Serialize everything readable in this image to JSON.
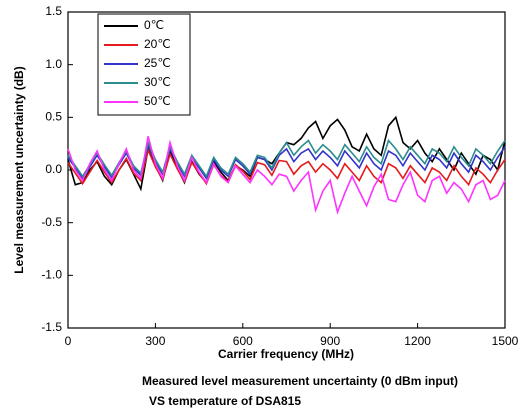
{
  "chart_data": {
    "type": "line",
    "xlabel": "Carrier frequency (MHz)",
    "ylabel": "Level measurement uncertainty (dB)",
    "caption": [
      "Measured level measurement uncertainty (0 dBm input)",
      "VS temperature of DSA815"
    ],
    "legend": "upper left",
    "xlim": [
      0,
      1500
    ],
    "xticks": [
      0,
      300,
      600,
      900,
      1200,
      1500
    ],
    "ylim": [
      -1.5,
      1.5
    ],
    "yticks": [
      -1.5,
      {
        "value": -1,
        "label": "-1.0"
      },
      -0.5,
      {
        "value": 0,
        "label": "0.0"
      },
      0.5,
      {
        "value": 1,
        "label": "1.0"
      },
      1.5
    ],
    "x": [
      0,
      25,
      50,
      75,
      100,
      125,
      150,
      175,
      200,
      225,
      250,
      275,
      300,
      325,
      350,
      375,
      400,
      425,
      450,
      475,
      500,
      525,
      550,
      575,
      600,
      625,
      650,
      675,
      700,
      725,
      750,
      775,
      800,
      825,
      850,
      875,
      900,
      925,
      950,
      975,
      1000,
      1025,
      1050,
      1075,
      1100,
      1125,
      1150,
      1175,
      1200,
      1225,
      1250,
      1275,
      1300,
      1325,
      1350,
      1375,
      1400,
      1425,
      1450,
      1475,
      1500
    ],
    "series": [
      {
        "name": "0℃",
        "color": "#000000",
        "values": [
          0.1,
          -0.14,
          -0.12,
          0.0,
          0.08,
          -0.06,
          -0.14,
          0.0,
          0.1,
          -0.04,
          -0.18,
          0.2,
          0.04,
          -0.1,
          0.18,
          0.02,
          -0.12,
          0.08,
          -0.04,
          -0.12,
          0.08,
          -0.02,
          -0.1,
          0.04,
          0.0,
          -0.06,
          0.12,
          0.1,
          0.06,
          0.16,
          0.26,
          0.24,
          0.3,
          0.4,
          0.46,
          0.3,
          0.42,
          0.48,
          0.38,
          0.22,
          0.18,
          0.34,
          0.2,
          0.14,
          0.42,
          0.5,
          0.26,
          0.2,
          0.28,
          0.16,
          0.08,
          0.2,
          0.1,
          0.0,
          0.16,
          0.06,
          -0.04,
          0.14,
          0.1,
          0.0,
          0.28
        ]
      },
      {
        "name": "20℃",
        "color": "#e41a1c",
        "values": [
          0.07,
          -0.03,
          -0.13,
          -0.02,
          0.09,
          -0.02,
          -0.12,
          0.0,
          0.11,
          -0.03,
          -0.1,
          0.19,
          0.03,
          -0.09,
          0.15,
          0.01,
          -0.11,
          0.07,
          -0.03,
          -0.13,
          0.05,
          -0.05,
          -0.11,
          0.05,
          -0.01,
          -0.09,
          0.07,
          0.05,
          -0.05,
          0.09,
          0.08,
          -0.04,
          0.04,
          0.08,
          -0.02,
          0.06,
          0.0,
          -0.08,
          0.06,
          -0.02,
          -0.1,
          0.04,
          -0.06,
          -0.12,
          0.06,
          0.02,
          -0.08,
          0.04,
          -0.04,
          -0.12,
          0.02,
          -0.02,
          -0.1,
          0.04,
          -0.06,
          -0.14,
          0.02,
          -0.04,
          -0.12,
          0.0,
          0.1
        ]
      },
      {
        "name": "25℃",
        "color": "#3333cc",
        "values": [
          0.12,
          0.02,
          -0.08,
          0.03,
          0.14,
          0.03,
          -0.07,
          0.05,
          0.16,
          0.02,
          -0.05,
          0.24,
          0.08,
          -0.04,
          0.2,
          0.06,
          -0.06,
          0.12,
          0.02,
          -0.08,
          0.1,
          0.0,
          -0.06,
          0.1,
          0.04,
          -0.04,
          0.12,
          0.1,
          0.0,
          0.14,
          0.2,
          0.08,
          0.16,
          0.2,
          0.1,
          0.18,
          0.12,
          0.04,
          0.18,
          0.1,
          0.02,
          0.16,
          0.06,
          0.0,
          0.18,
          0.14,
          0.04,
          0.16,
          0.08,
          0.0,
          0.14,
          0.1,
          0.02,
          0.16,
          0.06,
          -0.02,
          0.14,
          0.08,
          0.0,
          0.12,
          0.22
        ]
      },
      {
        "name": "30℃",
        "color": "#2a8c8c",
        "values": [
          0.14,
          0.04,
          -0.06,
          0.05,
          0.16,
          0.05,
          -0.05,
          0.07,
          0.18,
          0.04,
          -0.03,
          0.26,
          0.1,
          -0.02,
          0.22,
          0.08,
          -0.04,
          0.14,
          0.04,
          -0.06,
          0.12,
          0.02,
          -0.04,
          0.12,
          0.06,
          -0.02,
          0.14,
          0.12,
          0.02,
          0.16,
          0.26,
          0.14,
          0.22,
          0.28,
          0.16,
          0.24,
          0.18,
          0.1,
          0.24,
          0.16,
          0.08,
          0.22,
          0.12,
          0.06,
          0.28,
          0.2,
          0.1,
          0.22,
          0.14,
          0.06,
          0.2,
          0.16,
          0.08,
          0.22,
          0.12,
          0.04,
          0.2,
          0.14,
          0.06,
          0.18,
          0.28
        ]
      },
      {
        "name": "50℃",
        "color": "#ff33ff",
        "values": [
          0.2,
          0.0,
          -0.1,
          0.06,
          0.18,
          0.0,
          -0.1,
          0.06,
          0.2,
          0.0,
          -0.08,
          0.32,
          0.06,
          -0.08,
          0.26,
          0.04,
          -0.1,
          0.12,
          -0.02,
          -0.12,
          0.06,
          -0.06,
          -0.12,
          0.04,
          -0.04,
          -0.12,
          0.0,
          -0.06,
          -0.14,
          -0.04,
          -0.06,
          -0.2,
          -0.1,
          -0.02,
          -0.38,
          -0.2,
          -0.1,
          -0.4,
          -0.22,
          -0.06,
          -0.2,
          -0.34,
          -0.16,
          -0.04,
          -0.28,
          -0.3,
          -0.14,
          -0.02,
          -0.24,
          -0.3,
          -0.1,
          -0.06,
          -0.22,
          -0.12,
          -0.18,
          -0.3,
          -0.14,
          -0.1,
          -0.28,
          -0.24,
          -0.1
        ]
      }
    ]
  }
}
